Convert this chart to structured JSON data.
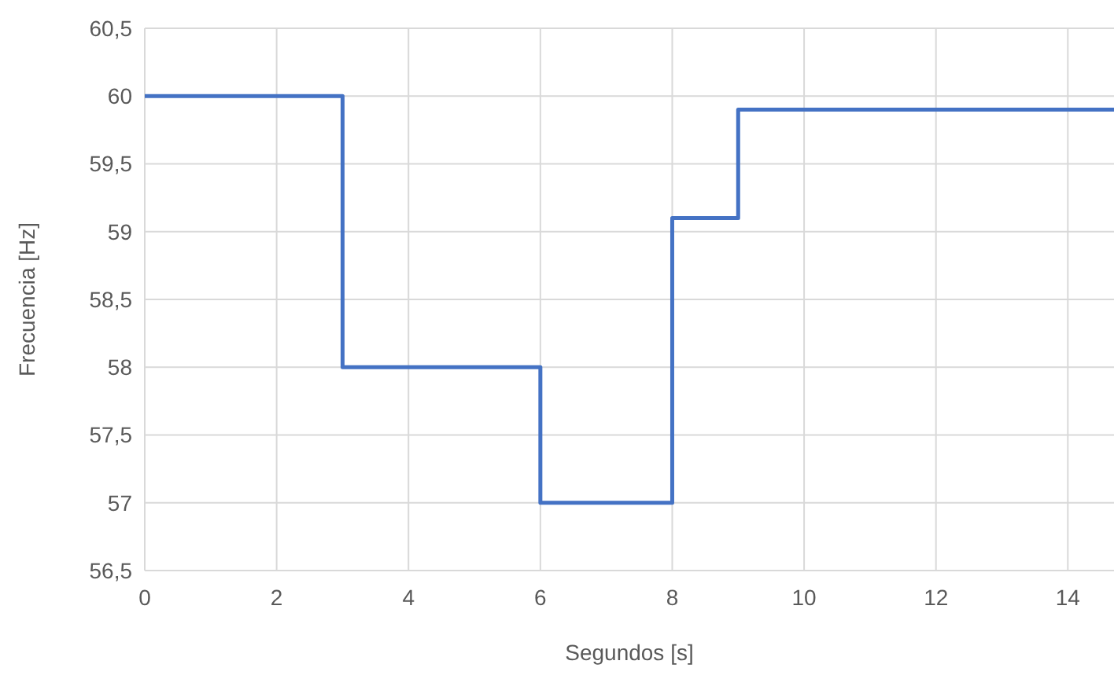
{
  "chart_data": {
    "type": "step",
    "xlabel": "Segundos [s]",
    "ylabel": "Frecuencia [Hz]",
    "x": [
      0,
      3,
      6,
      8,
      9,
      14.7
    ],
    "series": [
      {
        "color": "#4472c4",
        "values": [
          60,
          58,
          57,
          59.1,
          59.9,
          59.9
        ]
      }
    ],
    "xlim": [
      0,
      14.7
    ],
    "xticks": [
      0,
      2,
      4,
      6,
      8,
      10,
      12,
      14
    ],
    "ylim": [
      56.5,
      60.5
    ],
    "yticks": [
      {
        "value": 56.5,
        "label": "56,5"
      },
      57,
      {
        "value": 57.5,
        "label": "57,5"
      },
      58,
      {
        "value": 58.5,
        "label": "58,5"
      },
      59,
      {
        "value": 59.5,
        "label": "59,5"
      },
      60,
      {
        "value": 60.5,
        "label": "60,5"
      }
    ],
    "grid": true,
    "marker": "none",
    "line_style": "solid"
  }
}
